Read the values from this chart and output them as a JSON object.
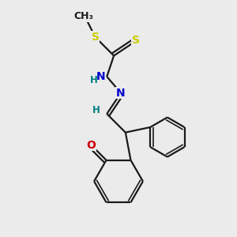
{
  "bg_color": "#ebebeb",
  "bond_color": "#1a1a1a",
  "S_color": "#cccc00",
  "N_color": "#0000cc",
  "O_color": "#cc0000",
  "H_color": "#008080",
  "figsize": [
    3.0,
    3.0
  ],
  "dpi": 100,
  "xlim": [
    0,
    10
  ],
  "ylim": [
    0,
    10
  ]
}
